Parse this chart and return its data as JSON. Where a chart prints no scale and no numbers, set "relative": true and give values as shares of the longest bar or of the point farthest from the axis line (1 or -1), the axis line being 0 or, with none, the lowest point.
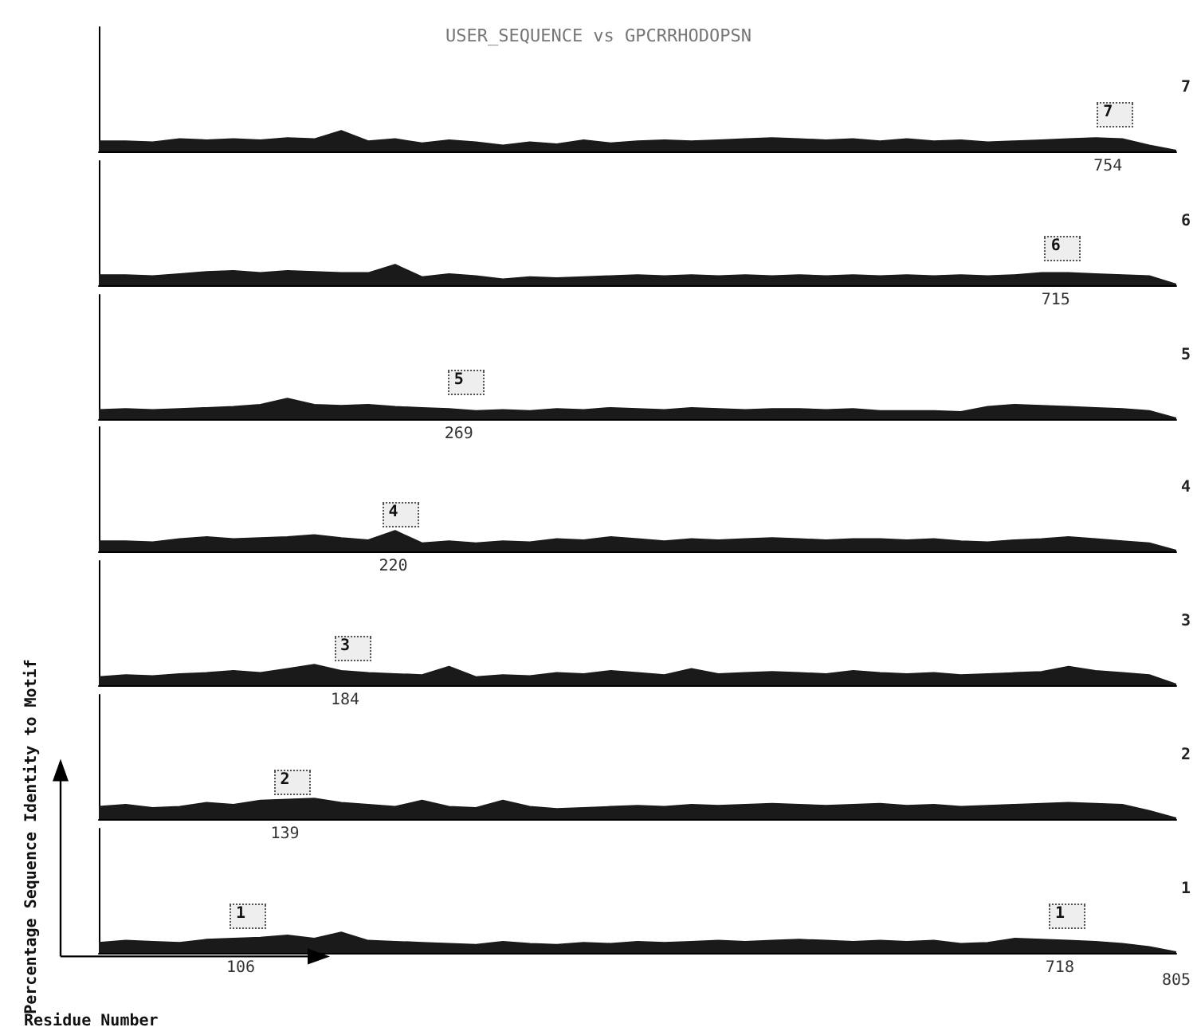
{
  "chart_data": [
    {
      "type": "area",
      "title": "USER_SEQUENCE vs GPCRRHODOPSN",
      "y2label": "7",
      "relative": true,
      "color": "#1a1a1a",
      "categories": [
        null,
        null,
        null,
        null,
        null,
        null,
        null,
        null,
        null,
        null,
        null,
        null,
        null,
        null,
        null,
        null,
        null,
        null,
        null,
        null,
        null,
        null,
        null,
        null,
        null,
        null,
        null,
        null,
        null,
        null,
        null,
        null,
        null,
        null,
        null,
        null,
        null,
        null,
        null,
        null,
        null
      ],
      "values": [
        0.5,
        0.5,
        0.45,
        0.6,
        0.55,
        0.6,
        0.55,
        0.65,
        0.6,
        1.0,
        0.5,
        0.6,
        0.4,
        0.55,
        0.45,
        0.3,
        0.45,
        0.35,
        0.55,
        0.4,
        0.5,
        0.55,
        0.5,
        0.55,
        0.6,
        0.65,
        0.6,
        0.55,
        0.6,
        0.5,
        0.6,
        0.5,
        0.55,
        0.45,
        0.5,
        0.55,
        0.6,
        0.65,
        0.6,
        0.3,
        0.05
      ],
      "annotations": [
        "7",
        "754"
      ]
    },
    {
      "type": "area",
      "y2label": "6",
      "relative": true,
      "color": "#1a1a1a",
      "categories": [
        null,
        null,
        null,
        null,
        null,
        null,
        null,
        null,
        null,
        null,
        null,
        null,
        null,
        null,
        null,
        null,
        null,
        null,
        null,
        null,
        null,
        null,
        null,
        null,
        null,
        null,
        null,
        null,
        null,
        null,
        null,
        null,
        null,
        null,
        null,
        null,
        null,
        null,
        null,
        null,
        null
      ],
      "values": [
        0.5,
        0.5,
        0.45,
        0.55,
        0.65,
        0.7,
        0.6,
        0.7,
        0.65,
        0.6,
        0.6,
        1.0,
        0.4,
        0.55,
        0.45,
        0.3,
        0.4,
        0.35,
        0.4,
        0.45,
        0.5,
        0.45,
        0.5,
        0.45,
        0.5,
        0.45,
        0.5,
        0.45,
        0.5,
        0.45,
        0.5,
        0.45,
        0.5,
        0.45,
        0.5,
        0.6,
        0.6,
        0.55,
        0.5,
        0.45,
        0.05
      ],
      "annotations": [
        "6",
        "715"
      ]
    },
    {
      "type": "area",
      "y2label": "5",
      "relative": true,
      "color": "#1a1a1a",
      "categories": [
        null,
        null,
        null,
        null,
        null,
        null,
        null,
        null,
        null,
        null,
        null,
        null,
        null,
        null,
        null,
        null,
        null,
        null,
        null,
        null,
        null,
        null,
        null,
        null,
        null,
        null,
        null,
        null,
        null,
        null,
        null,
        null,
        null,
        null,
        null,
        null,
        null,
        null,
        null,
        null,
        null
      ],
      "values": [
        0.45,
        0.5,
        0.45,
        0.5,
        0.55,
        0.6,
        0.7,
        1.0,
        0.7,
        0.65,
        0.7,
        0.6,
        0.55,
        0.5,
        0.4,
        0.45,
        0.4,
        0.5,
        0.45,
        0.55,
        0.5,
        0.45,
        0.55,
        0.5,
        0.45,
        0.5,
        0.5,
        0.45,
        0.5,
        0.4,
        0.4,
        0.4,
        0.35,
        0.6,
        0.7,
        0.65,
        0.6,
        0.55,
        0.5,
        0.4,
        0.05
      ],
      "annotations": [
        "5",
        "269"
      ]
    },
    {
      "type": "area",
      "y2label": "4",
      "relative": true,
      "color": "#1a1a1a",
      "categories": [
        null,
        null,
        null,
        null,
        null,
        null,
        null,
        null,
        null,
        null,
        null,
        null,
        null,
        null,
        null,
        null,
        null,
        null,
        null,
        null,
        null,
        null,
        null,
        null,
        null,
        null,
        null,
        null,
        null,
        null,
        null,
        null,
        null,
        null,
        null,
        null,
        null,
        null,
        null,
        null,
        null
      ],
      "values": [
        0.5,
        0.5,
        0.45,
        0.6,
        0.7,
        0.6,
        0.65,
        0.7,
        0.8,
        0.65,
        0.55,
        1.0,
        0.4,
        0.5,
        0.4,
        0.5,
        0.45,
        0.6,
        0.55,
        0.7,
        0.6,
        0.5,
        0.6,
        0.55,
        0.6,
        0.65,
        0.6,
        0.55,
        0.6,
        0.6,
        0.55,
        0.6,
        0.5,
        0.45,
        0.55,
        0.6,
        0.7,
        0.6,
        0.5,
        0.4,
        0.05
      ],
      "annotations": [
        "4",
        "220"
      ]
    },
    {
      "type": "area",
      "y2label": "3",
      "relative": true,
      "color": "#1a1a1a",
      "categories": [
        null,
        null,
        null,
        null,
        null,
        null,
        null,
        null,
        null,
        null,
        null,
        null,
        null,
        null,
        null,
        null,
        null,
        null,
        null,
        null,
        null,
        null,
        null,
        null,
        null,
        null,
        null,
        null,
        null,
        null,
        null,
        null,
        null,
        null,
        null,
        null,
        null,
        null,
        null,
        null,
        null
      ],
      "values": [
        0.4,
        0.5,
        0.45,
        0.55,
        0.6,
        0.7,
        0.6,
        0.8,
        1.0,
        0.7,
        0.6,
        0.55,
        0.5,
        0.9,
        0.4,
        0.5,
        0.45,
        0.6,
        0.55,
        0.7,
        0.6,
        0.5,
        0.8,
        0.55,
        0.6,
        0.65,
        0.6,
        0.55,
        0.7,
        0.6,
        0.55,
        0.6,
        0.5,
        0.55,
        0.6,
        0.65,
        0.9,
        0.7,
        0.6,
        0.5,
        0.05
      ],
      "annotations": [
        "3",
        "184"
      ]
    },
    {
      "type": "area",
      "y2label": "2",
      "relative": true,
      "color": "#1a1a1a",
      "categories": [
        null,
        null,
        null,
        null,
        null,
        null,
        null,
        null,
        null,
        null,
        null,
        null,
        null,
        null,
        null,
        null,
        null,
        null,
        null,
        null,
        null,
        null,
        null,
        null,
        null,
        null,
        null,
        null,
        null,
        null,
        null,
        null,
        null,
        null,
        null,
        null,
        null,
        null,
        null,
        null,
        null
      ],
      "values": [
        0.6,
        0.7,
        0.55,
        0.6,
        0.8,
        0.7,
        0.9,
        0.95,
        1.0,
        0.8,
        0.7,
        0.6,
        0.9,
        0.6,
        0.55,
        0.9,
        0.6,
        0.5,
        0.55,
        0.6,
        0.65,
        0.6,
        0.7,
        0.65,
        0.7,
        0.75,
        0.7,
        0.65,
        0.7,
        0.75,
        0.65,
        0.7,
        0.6,
        0.65,
        0.7,
        0.75,
        0.8,
        0.75,
        0.7,
        0.4,
        0.05
      ],
      "annotations": [
        "2",
        "139"
      ]
    },
    {
      "type": "area",
      "y2label": "1",
      "xlabel": "Residue Number",
      "ylabel": "Percentage Sequence Identity to Motif",
      "relative": true,
      "color": "#1a1a1a",
      "categories": [
        null,
        null,
        null,
        null,
        null,
        null,
        null,
        null,
        null,
        null,
        null,
        null,
        null,
        null,
        null,
        null,
        null,
        null,
        null,
        null,
        null,
        null,
        null,
        null,
        null,
        null,
        null,
        null,
        null,
        null,
        null,
        null,
        null,
        null,
        null,
        null,
        null,
        null,
        null,
        null,
        null
      ],
      "values": [
        0.5,
        0.6,
        0.55,
        0.5,
        0.65,
        0.7,
        0.75,
        0.85,
        0.7,
        1.0,
        0.6,
        0.55,
        0.5,
        0.45,
        0.4,
        0.55,
        0.45,
        0.4,
        0.5,
        0.45,
        0.55,
        0.5,
        0.55,
        0.6,
        0.55,
        0.6,
        0.65,
        0.6,
        0.55,
        0.6,
        0.55,
        0.6,
        0.45,
        0.5,
        0.7,
        0.65,
        0.6,
        0.55,
        0.45,
        0.3,
        0.05
      ],
      "annotations": [
        "1",
        "106",
        "1",
        "718",
        "805"
      ]
    }
  ]
}
